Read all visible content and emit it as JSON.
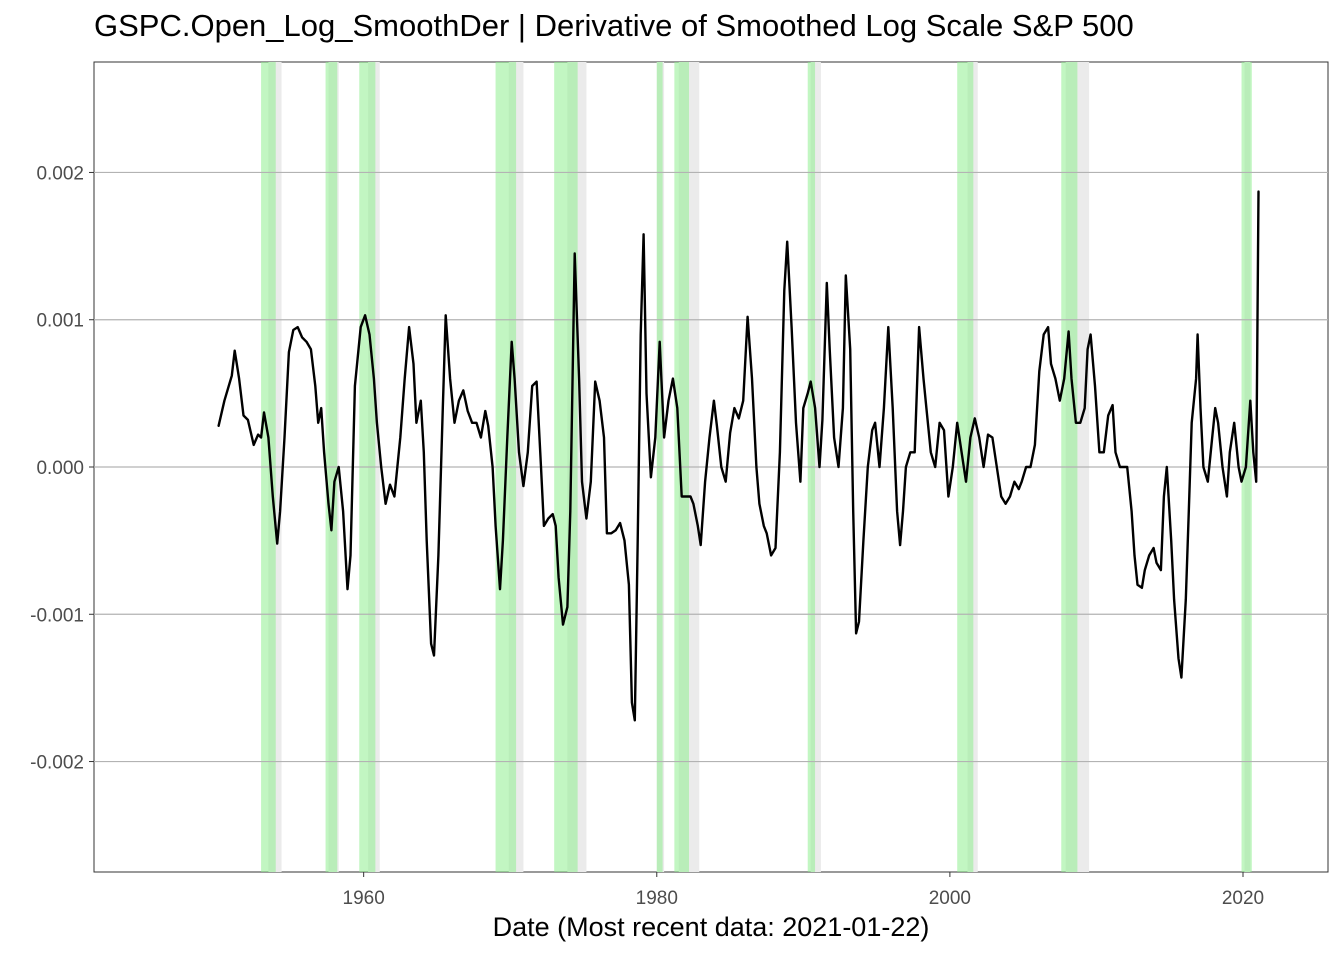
{
  "chart_data": {
    "type": "line",
    "title": "GSPC.Open_Log_SmoothDer  |  Derivative of Smoothed Log Scale S&P 500",
    "xlabel": "Date (Most recent data: 2021-01-22)",
    "ylabel": "",
    "xlim": [
      1941.6,
      2025.8
    ],
    "ylim": [
      -0.00275,
      0.00275
    ],
    "x_ticks": [
      1960,
      1980,
      2000,
      2020
    ],
    "x_tick_labels": [
      "1960",
      "1980",
      "2000",
      "2020"
    ],
    "y_ticks": [
      -0.002,
      -0.001,
      0.0,
      0.001,
      0.002
    ],
    "y_tick_labels": [
      "-0.002",
      "-0.001",
      "0.000",
      "0.001",
      "0.002"
    ],
    "grid": true,
    "shaded_regions": {
      "recession_periods": [
        {
          "start": 1953.5,
          "end": 1954.4
        },
        {
          "start": 1957.6,
          "end": 1958.3
        },
        {
          "start": 1960.3,
          "end": 1961.1
        },
        {
          "start": 1969.9,
          "end": 1970.9
        },
        {
          "start": 1973.9,
          "end": 1975.2
        },
        {
          "start": 1980.0,
          "end": 1980.5
        },
        {
          "start": 1981.5,
          "end": 1982.9
        },
        {
          "start": 1990.5,
          "end": 1991.2
        },
        {
          "start": 2001.2,
          "end": 2001.9
        },
        {
          "start": 2007.9,
          "end": 2009.5
        },
        {
          "start": 2020.1,
          "end": 2020.5
        }
      ],
      "signal_periods": [
        {
          "start": 1953.0,
          "end": 1954.0
        },
        {
          "start": 1957.4,
          "end": 1958.2
        },
        {
          "start": 1959.7,
          "end": 1960.8
        },
        {
          "start": 1969.0,
          "end": 1970.4
        },
        {
          "start": 1973.0,
          "end": 1974.6
        },
        {
          "start": 1980.0,
          "end": 1980.4
        },
        {
          "start": 1981.2,
          "end": 1982.2
        },
        {
          "start": 1990.3,
          "end": 1990.8
        },
        {
          "start": 2000.5,
          "end": 2001.6
        },
        {
          "start": 2007.6,
          "end": 2008.7
        },
        {
          "start": 2019.9,
          "end": 2020.6
        }
      ]
    },
    "series": [
      {
        "color": "#000000",
        "points": [
          [
            1950.1,
            0.00028
          ],
          [
            1950.5,
            0.00045
          ],
          [
            1951.0,
            0.00062
          ],
          [
            1951.2,
            0.00079
          ],
          [
            1951.5,
            0.0006
          ],
          [
            1951.8,
            0.00035
          ],
          [
            1952.1,
            0.00032
          ],
          [
            1952.5,
            0.00015
          ],
          [
            1952.8,
            0.00022
          ],
          [
            1953.0,
            0.0002
          ],
          [
            1953.2,
            0.00037
          ],
          [
            1953.5,
            0.0002
          ],
          [
            1953.8,
            -0.0002
          ],
          [
            1954.1,
            -0.00052
          ],
          [
            1954.3,
            -0.0003
          ],
          [
            1954.6,
            0.0002
          ],
          [
            1954.9,
            0.00078
          ],
          [
            1955.2,
            0.00093
          ],
          [
            1955.5,
            0.00095
          ],
          [
            1955.8,
            0.00088
          ],
          [
            1956.1,
            0.00085
          ],
          [
            1956.4,
            0.0008
          ],
          [
            1956.7,
            0.00055
          ],
          [
            1956.9,
            0.0003
          ],
          [
            1957.1,
            0.0004
          ],
          [
            1957.3,
            0.0001
          ],
          [
            1957.6,
            -0.00025
          ],
          [
            1957.8,
            -0.00043
          ],
          [
            1958.0,
            -0.0001
          ],
          [
            1958.3,
            0.0
          ],
          [
            1958.6,
            -0.0003
          ],
          [
            1958.9,
            -0.00083
          ],
          [
            1959.1,
            -0.0006
          ],
          [
            1959.4,
            0.00055
          ],
          [
            1959.8,
            0.00095
          ],
          [
            1960.1,
            0.00103
          ],
          [
            1960.4,
            0.0009
          ],
          [
            1960.7,
            0.0006
          ],
          [
            1960.9,
            0.0003
          ],
          [
            1961.2,
            0.0
          ],
          [
            1961.5,
            -0.00025
          ],
          [
            1961.8,
            -0.00012
          ],
          [
            1962.1,
            -0.0002
          ],
          [
            1962.5,
            0.0002
          ],
          [
            1962.8,
            0.0006
          ],
          [
            1963.1,
            0.00095
          ],
          [
            1963.4,
            0.0007
          ],
          [
            1963.6,
            0.0003
          ],
          [
            1963.9,
            0.00045
          ],
          [
            1964.1,
            0.0001
          ],
          [
            1964.3,
            -0.0005
          ],
          [
            1964.6,
            -0.0012
          ],
          [
            1964.8,
            -0.00128
          ],
          [
            1965.1,
            -0.0006
          ],
          [
            1965.4,
            0.0004
          ],
          [
            1965.6,
            0.00103
          ],
          [
            1965.9,
            0.0006
          ],
          [
            1966.2,
            0.0003
          ],
          [
            1966.5,
            0.00045
          ],
          [
            1966.8,
            0.00052
          ],
          [
            1967.1,
            0.00038
          ],
          [
            1967.4,
            0.0003
          ],
          [
            1967.7,
            0.0003
          ],
          [
            1968.0,
            0.0002
          ],
          [
            1968.3,
            0.00038
          ],
          [
            1968.5,
            0.00028
          ],
          [
            1968.8,
            0.0
          ],
          [
            1969.0,
            -0.0004
          ],
          [
            1969.3,
            -0.00083
          ],
          [
            1969.5,
            -0.0005
          ],
          [
            1969.8,
            0.0002
          ],
          [
            1970.1,
            0.00085
          ],
          [
            1970.3,
            0.0006
          ],
          [
            1970.6,
            0.0001
          ],
          [
            1970.9,
            -0.00013
          ],
          [
            1971.2,
            0.0001
          ],
          [
            1971.5,
            0.00055
          ],
          [
            1971.8,
            0.00058
          ],
          [
            1972.1,
            0.0
          ],
          [
            1972.3,
            -0.0004
          ],
          [
            1972.6,
            -0.00035
          ],
          [
            1972.9,
            -0.00032
          ],
          [
            1973.1,
            -0.0004
          ],
          [
            1973.3,
            -0.00075
          ],
          [
            1973.6,
            -0.00107
          ],
          [
            1973.9,
            -0.00095
          ],
          [
            1974.1,
            -0.0003
          ],
          [
            1974.4,
            0.00145
          ],
          [
            1974.7,
            0.0006
          ],
          [
            1974.9,
            -0.0001
          ],
          [
            1975.2,
            -0.00035
          ],
          [
            1975.5,
            -0.0001
          ],
          [
            1975.8,
            0.00058
          ],
          [
            1976.1,
            0.00045
          ],
          [
            1976.4,
            0.0002
          ],
          [
            1976.6,
            -0.00045
          ],
          [
            1976.9,
            -0.00045
          ],
          [
            1977.2,
            -0.00043
          ],
          [
            1977.5,
            -0.00038
          ],
          [
            1977.8,
            -0.0005
          ],
          [
            1978.1,
            -0.0008
          ],
          [
            1978.3,
            -0.0016
          ],
          [
            1978.5,
            -0.00172
          ],
          [
            1978.7,
            -0.0005
          ],
          [
            1978.9,
            0.0009
          ],
          [
            1979.1,
            0.00158
          ],
          [
            1979.3,
            0.0005
          ],
          [
            1979.6,
            -7e-05
          ],
          [
            1979.9,
            0.0002
          ],
          [
            1980.2,
            0.00085
          ],
          [
            1980.5,
            0.0002
          ],
          [
            1980.8,
            0.00045
          ],
          [
            1981.1,
            0.0006
          ],
          [
            1981.4,
            0.0004
          ],
          [
            1981.7,
            -0.0002
          ],
          [
            1982.0,
            -0.0002
          ],
          [
            1982.3,
            -0.0002
          ],
          [
            1982.5,
            -0.00025
          ],
          [
            1982.8,
            -0.0004
          ],
          [
            1983.0,
            -0.00053
          ],
          [
            1983.3,
            -0.0001
          ],
          [
            1983.6,
            0.0002
          ],
          [
            1983.9,
            0.00045
          ],
          [
            1984.1,
            0.00028
          ],
          [
            1984.4,
            0.0
          ],
          [
            1984.7,
            -0.0001
          ],
          [
            1985.0,
            0.00023
          ],
          [
            1985.3,
            0.0004
          ],
          [
            1985.6,
            0.00033
          ],
          [
            1985.9,
            0.00045
          ],
          [
            1986.2,
            0.00102
          ],
          [
            1986.5,
            0.0006
          ],
          [
            1986.8,
            0.0
          ],
          [
            1987.0,
            -0.00025
          ],
          [
            1987.3,
            -0.0004
          ],
          [
            1987.5,
            -0.00045
          ],
          [
            1987.8,
            -0.0006
          ],
          [
            1988.1,
            -0.00055
          ],
          [
            1988.4,
            0.0001
          ],
          [
            1988.7,
            0.0012
          ],
          [
            1988.9,
            0.00153
          ],
          [
            1989.2,
            0.00095
          ],
          [
            1989.5,
            0.0003
          ],
          [
            1989.8,
            -0.0001
          ],
          [
            1990.0,
            0.0004
          ],
          [
            1990.3,
            0.0005
          ],
          [
            1990.5,
            0.00058
          ],
          [
            1990.8,
            0.0004
          ],
          [
            1991.1,
            0.0
          ],
          [
            1991.3,
            0.00032
          ],
          [
            1991.6,
            0.00125
          ],
          [
            1991.8,
            0.0008
          ],
          [
            1992.1,
            0.0002
          ],
          [
            1992.4,
            0.0
          ],
          [
            1992.7,
            0.0004
          ],
          [
            1992.9,
            0.0013
          ],
          [
            1993.2,
            0.0008
          ],
          [
            1993.4,
            -0.0003
          ],
          [
            1993.6,
            -0.00113
          ],
          [
            1993.8,
            -0.00105
          ],
          [
            1994.1,
            -0.0005
          ],
          [
            1994.4,
            0.0
          ],
          [
            1994.7,
            0.00025
          ],
          [
            1994.9,
            0.0003
          ],
          [
            1995.2,
            0.0
          ],
          [
            1995.5,
            0.0004
          ],
          [
            1995.8,
            0.00095
          ],
          [
            1996.1,
            0.0004
          ],
          [
            1996.4,
            -0.0003
          ],
          [
            1996.6,
            -0.00053
          ],
          [
            1996.8,
            -0.0003
          ],
          [
            1997.0,
            0.0
          ],
          [
            1997.3,
            0.0001
          ],
          [
            1997.6,
            0.0001
          ],
          [
            1997.9,
            0.00095
          ],
          [
            1998.2,
            0.0006
          ],
          [
            1998.4,
            0.0004
          ],
          [
            1998.7,
            0.0001
          ],
          [
            1999.0,
            0.0
          ],
          [
            1999.3,
            0.0003
          ],
          [
            1999.6,
            0.00025
          ],
          [
            1999.9,
            -0.0002
          ],
          [
            2000.2,
            0.0
          ],
          [
            2000.5,
            0.0003
          ],
          [
            2000.8,
            0.0001
          ],
          [
            2001.1,
            -0.0001
          ],
          [
            2001.4,
            0.0002
          ],
          [
            2001.7,
            0.00033
          ],
          [
            2002.0,
            0.0002
          ],
          [
            2002.3,
            0.0
          ],
          [
            2002.6,
            0.00022
          ],
          [
            2002.9,
            0.0002
          ],
          [
            2003.2,
            0.0
          ],
          [
            2003.5,
            -0.0002
          ],
          [
            2003.8,
            -0.00025
          ],
          [
            2004.1,
            -0.0002
          ],
          [
            2004.4,
            -0.0001
          ],
          [
            2004.7,
            -0.00015
          ],
          [
            2004.9,
            -0.0001
          ],
          [
            2005.2,
            0.0
          ],
          [
            2005.5,
            0.0
          ],
          [
            2005.8,
            0.00015
          ],
          [
            2006.1,
            0.00065
          ],
          [
            2006.4,
            0.0009
          ],
          [
            2006.7,
            0.00095
          ],
          [
            2006.9,
            0.0007
          ],
          [
            2007.2,
            0.0006
          ],
          [
            2007.5,
            0.00045
          ],
          [
            2007.8,
            0.0006
          ],
          [
            2008.1,
            0.00092
          ],
          [
            2008.3,
            0.0006
          ],
          [
            2008.6,
            0.0003
          ],
          [
            2008.9,
            0.0003
          ],
          [
            2009.2,
            0.0004
          ],
          [
            2009.4,
            0.0008
          ],
          [
            2009.6,
            0.0009
          ],
          [
            2009.9,
            0.00055
          ],
          [
            2010.2,
            0.0001
          ],
          [
            2010.5,
            0.0001
          ],
          [
            2010.8,
            0.00035
          ],
          [
            2011.1,
            0.00042
          ],
          [
            2011.3,
            0.0001
          ],
          [
            2011.6,
            0.0
          ],
          [
            2011.9,
            0.0
          ],
          [
            2012.1,
            0.0
          ],
          [
            2012.4,
            -0.0003
          ],
          [
            2012.6,
            -0.0006
          ],
          [
            2012.8,
            -0.0008
          ],
          [
            2013.1,
            -0.00082
          ],
          [
            2013.3,
            -0.0007
          ],
          [
            2013.6,
            -0.0006
          ],
          [
            2013.9,
            -0.00055
          ],
          [
            2014.1,
            -0.00065
          ],
          [
            2014.4,
            -0.0007
          ],
          [
            2014.6,
            -0.0002
          ],
          [
            2014.8,
            0.0
          ],
          [
            2015.1,
            -0.0005
          ],
          [
            2015.3,
            -0.0009
          ],
          [
            2015.6,
            -0.0013
          ],
          [
            2015.8,
            -0.00143
          ],
          [
            2016.1,
            -0.0009
          ],
          [
            2016.3,
            -0.0003
          ],
          [
            2016.5,
            0.0003
          ],
          [
            2016.8,
            0.0006
          ],
          [
            2016.9,
            0.0009
          ],
          [
            2017.1,
            0.0004
          ],
          [
            2017.3,
            0.0
          ],
          [
            2017.6,
            -0.0001
          ],
          [
            2017.9,
            0.0002
          ],
          [
            2018.1,
            0.0004
          ],
          [
            2018.3,
            0.0003
          ],
          [
            2018.6,
            0.0
          ],
          [
            2018.9,
            -0.0002
          ],
          [
            2019.1,
            0.0001
          ],
          [
            2019.4,
            0.0003
          ],
          [
            2019.7,
            0.0
          ],
          [
            2019.9,
            -0.0001
          ],
          [
            2020.2,
            0.0
          ],
          [
            2020.5,
            0.00045
          ],
          [
            2020.7,
            0.0001
          ],
          [
            2020.9,
            -0.0001
          ],
          [
            2021.06,
            0.00187
          ]
        ]
      }
    ]
  }
}
